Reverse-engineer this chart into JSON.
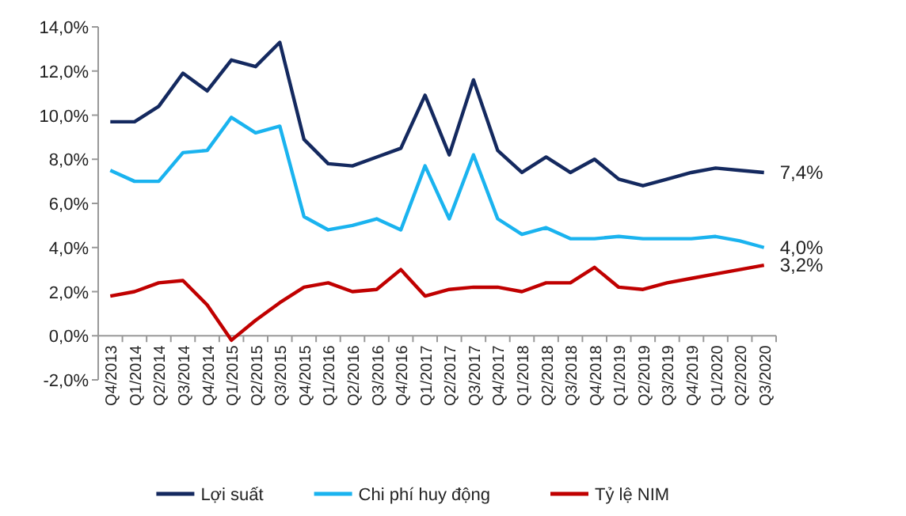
{
  "chart_data": {
    "type": "line",
    "categories": [
      "Q4/2013",
      "Q1/2014",
      "Q2/2014",
      "Q3/2014",
      "Q4/2014",
      "Q1/2015",
      "Q2/2015",
      "Q3/2015",
      "Q4/2015",
      "Q1/2016",
      "Q2/2016",
      "Q3/2016",
      "Q4/2016",
      "Q1/2017",
      "Q2/2017",
      "Q3/2017",
      "Q4/2017",
      "Q1/2018",
      "Q2/2018",
      "Q3/2018",
      "Q4/2018",
      "Q1/2019",
      "Q2/2019",
      "Q3/2019",
      "Q4/2019",
      "Q1/2020",
      "Q2/2020",
      "Q3/2020"
    ],
    "series": [
      {
        "name": "Lợi suất",
        "color": "#14295f",
        "values": [
          9.7,
          9.7,
          10.4,
          11.9,
          11.1,
          12.5,
          12.2,
          13.3,
          8.9,
          7.8,
          7.7,
          8.1,
          8.5,
          10.9,
          8.2,
          11.6,
          8.4,
          7.4,
          8.1,
          7.4,
          8.0,
          7.1,
          6.8,
          7.1,
          7.4,
          7.6,
          7.5,
          7.4
        ],
        "value_labels": [
          null,
          null,
          null,
          null,
          null,
          null,
          null,
          null,
          null,
          null,
          null,
          null,
          null,
          null,
          null,
          null,
          null,
          null,
          null,
          null,
          null,
          null,
          null,
          null,
          null,
          null,
          null,
          "7,4%"
        ]
      },
      {
        "name": "Chi phí huy động",
        "color": "#1ab3ef",
        "values": [
          7.5,
          7.0,
          7.0,
          8.3,
          8.4,
          9.9,
          9.2,
          9.5,
          5.4,
          4.8,
          5.0,
          5.3,
          4.8,
          7.7,
          5.3,
          8.2,
          5.3,
          4.6,
          4.9,
          4.4,
          4.4,
          4.5,
          4.4,
          4.4,
          4.4,
          4.5,
          4.3,
          4.0
        ],
        "value_labels": [
          null,
          null,
          null,
          null,
          null,
          null,
          null,
          null,
          null,
          null,
          null,
          null,
          null,
          null,
          null,
          null,
          null,
          null,
          null,
          null,
          null,
          null,
          null,
          null,
          null,
          null,
          null,
          "4,0%"
        ]
      },
      {
        "name": "Tỷ lệ NIM",
        "color": "#c00000",
        "values": [
          1.8,
          2.0,
          2.4,
          2.5,
          1.4,
          -0.2,
          0.7,
          1.5,
          2.2,
          2.4,
          2.0,
          2.1,
          3.0,
          1.8,
          2.1,
          2.2,
          2.2,
          2.0,
          2.4,
          2.4,
          3.1,
          2.2,
          2.1,
          2.4,
          2.6,
          2.8,
          3.0,
          3.2
        ],
        "value_labels": [
          null,
          null,
          null,
          null,
          null,
          null,
          null,
          null,
          null,
          null,
          null,
          null,
          null,
          null,
          null,
          null,
          null,
          null,
          null,
          null,
          null,
          null,
          null,
          null,
          null,
          null,
          null,
          "3,2%"
        ]
      }
    ],
    "ylim": [
      -2,
      14
    ],
    "yticks": [
      {
        "value": -2,
        "label": "-2,0%"
      },
      {
        "value": 0,
        "label": "0,0%"
      },
      {
        "value": 2,
        "label": "2,0%"
      },
      {
        "value": 4,
        "label": "4,0%"
      },
      {
        "value": 6,
        "label": "6,0%"
      },
      {
        "value": 8,
        "label": "8,0%"
      },
      {
        "value": 10,
        "label": "10,0%"
      },
      {
        "value": 12,
        "label": "12,0%"
      },
      {
        "value": 14,
        "label": "14,0%"
      }
    ],
    "legend": "bottom",
    "grid": false,
    "marker": "none",
    "line_style": "solid"
  }
}
